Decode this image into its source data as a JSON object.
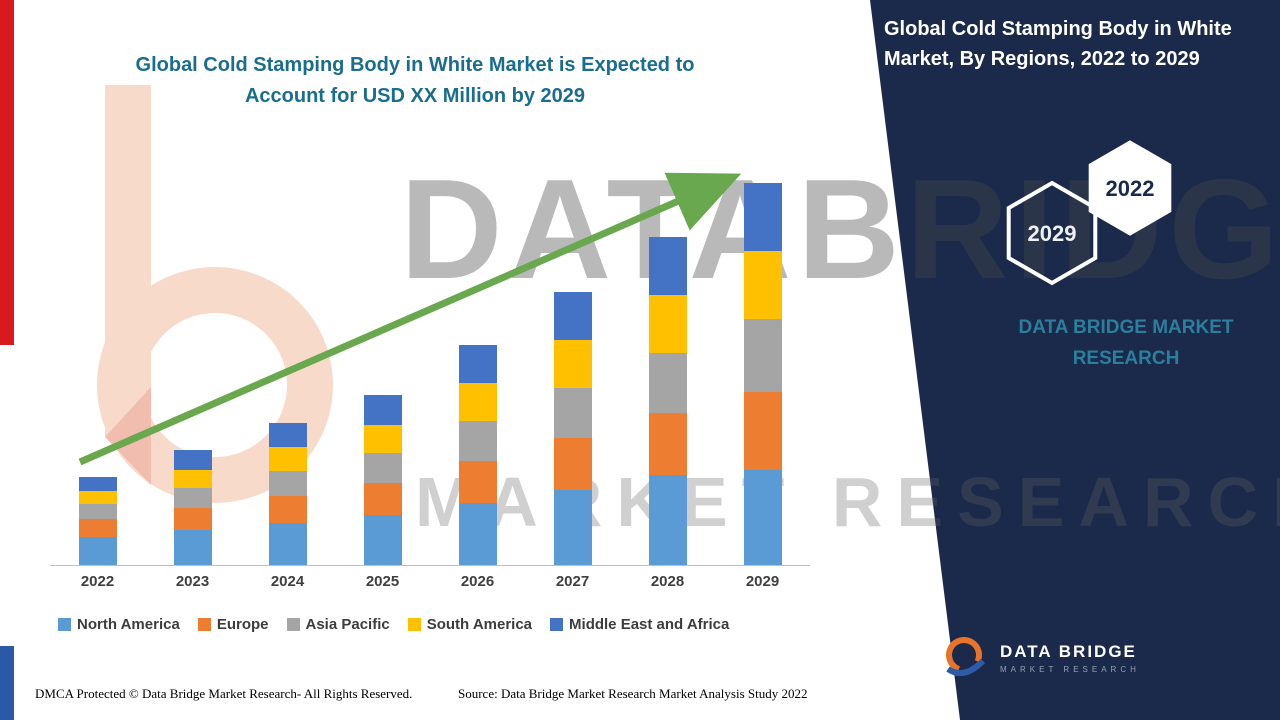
{
  "header": {
    "left_title": [
      "Global Cold Stamping Body in White Market is Expected to",
      "Account for USD XX Million by 2029"
    ],
    "right_title": [
      "Global Cold Stamping Body in White",
      "Market, By Regions, 2022 to 2029"
    ]
  },
  "side_panel": {
    "hexagon_front": "2029",
    "hexagon_back": "2022",
    "brand_lines": [
      "DATA BRIDGE MARKET",
      "RESEARCH"
    ]
  },
  "logo": {
    "name_line": "DATA BRIDGE",
    "sub_line": "MARKET RESEARCH"
  },
  "watermark": {
    "line1": "DATABRIDGE",
    "line2": "MARKET RESEARCH"
  },
  "footer": {
    "dmca": "DMCA Protected © Data Bridge Market Research- All Rights Reserved.",
    "source": "Source: Data Bridge Market Research Market Analysis Study 2022"
  },
  "colors": {
    "accent_teal": "#1A6D8E",
    "panel_navy": "#1B2A4B",
    "arrow_green": "#6AA84F",
    "stripe_red": "#D71920",
    "stripe_blue": "#2B59A5"
  },
  "chart_data": {
    "type": "bar",
    "stacked": true,
    "title": "Global Cold Stamping Body in White Market is Expected to Account for USD XX Million by 2029",
    "categories": [
      "2022",
      "2023",
      "2024",
      "2025",
      "2026",
      "2027",
      "2028",
      "2029"
    ],
    "series": [
      {
        "name": "North America",
        "color": "#5B9BD5",
        "values": [
          28,
          35,
          42,
          50,
          62,
          75,
          90,
          95
        ]
      },
      {
        "name": "Europe",
        "color": "#ED7D31",
        "values": [
          18,
          22,
          27,
          32,
          42,
          52,
          62,
          78
        ]
      },
      {
        "name": "Asia Pacific",
        "color": "#A5A5A5",
        "values": [
          15,
          20,
          25,
          30,
          40,
          50,
          60,
          73
        ]
      },
      {
        "name": "South America",
        "color": "#FFC000",
        "values": [
          13,
          18,
          24,
          28,
          38,
          48,
          58,
          68
        ]
      },
      {
        "name": "Middle East and Africa",
        "color": "#4472C4",
        "values": [
          14,
          20,
          24,
          30,
          38,
          48,
          58,
          68
        ]
      }
    ],
    "xlabel": "",
    "ylabel": "",
    "ylim": [
      0,
      400
    ],
    "grid": false,
    "y_axis_shown": false,
    "legend_position": "bottom",
    "trend_arrow": true
  }
}
